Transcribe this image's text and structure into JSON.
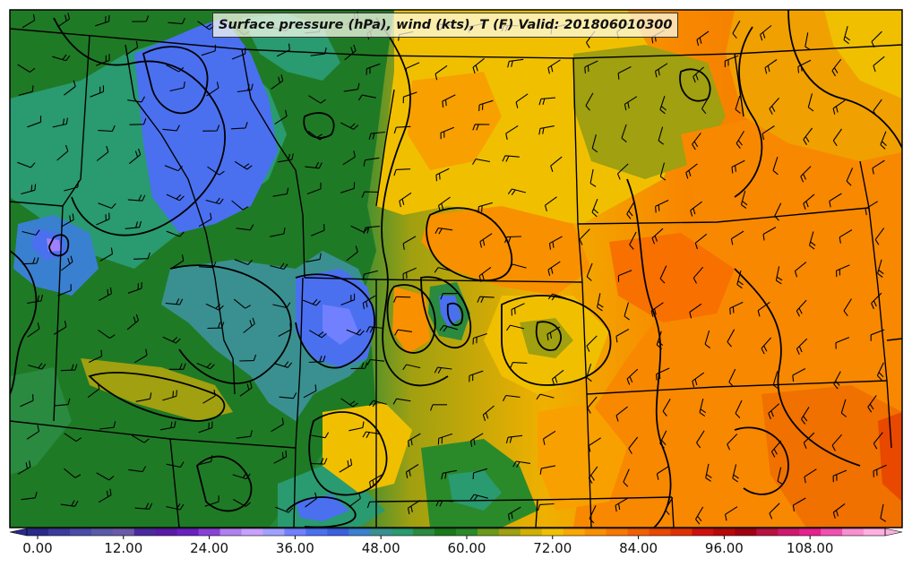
{
  "title": "Surface pressure (hPa), wind (kts), T (F) Valid: 201806010300",
  "colorbar": {
    "ticks": [
      "0.00",
      "12.00",
      "24.00",
      "36.00",
      "48.00",
      "60.00",
      "72.00",
      "84.00",
      "96.00",
      "108.00"
    ],
    "colors": [
      "#2a2a8c",
      "#3b3b9e",
      "#4a4aa8",
      "#5a5aa8",
      "#6a5aa8",
      "#4b2aa0",
      "#5a1aa8",
      "#6a20c0",
      "#8a40d8",
      "#b080f0",
      "#c8a0ff",
      "#a0a0ff",
      "#7080ff",
      "#4a70f0",
      "#3a60e0",
      "#3a80d0",
      "#3a9090",
      "#2a9a70",
      "#2a8a40",
      "#1a7a1a",
      "#2a8a2a",
      "#6a9a1a",
      "#a0a010",
      "#d0b000",
      "#f0c000",
      "#f8a800",
      "#f89000",
      "#f87800",
      "#f06000",
      "#e84800",
      "#e03000",
      "#d01010",
      "#b80808",
      "#a00010",
      "#b81040",
      "#d01870",
      "#e82090",
      "#f050b0",
      "#f890d0",
      "#ffb0e0"
    ]
  }
}
